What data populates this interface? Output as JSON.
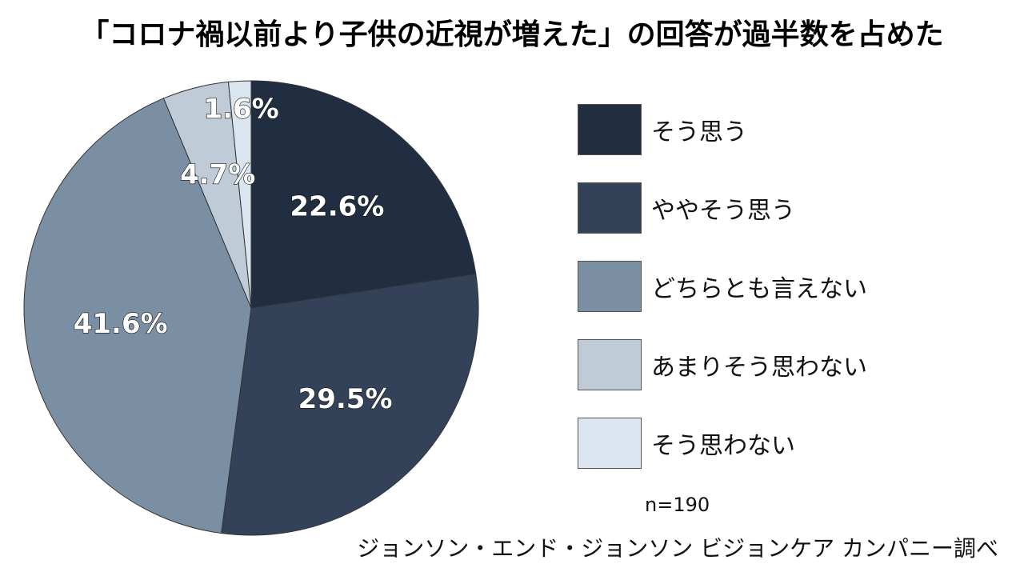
{
  "title": "「コロナ禍以前より子供の近視が増えた」の回答が過半数を占めた",
  "chart_data": {
    "type": "pie",
    "categories": [
      "そう思う",
      "ややそう思う",
      "どちらとも言えない",
      "あまりそう思わない",
      "そう思わない"
    ],
    "values": [
      22.6,
      29.5,
      41.6,
      4.7,
      1.6
    ],
    "value_labels": [
      "22.6%",
      "29.5%",
      "41.6%",
      "4.7%",
      "1.6%"
    ],
    "colors": [
      "#212d40",
      "#334258",
      "#7b8fa4",
      "#bfcbd7",
      "#dbe5ef"
    ],
    "start_angle": "top (12 o'clock)",
    "direction": "clockwise",
    "legend_position": "right"
  },
  "sample_size": "n=190",
  "source": "ジョンソン・エンド・ジョンソン ビジョンケア カンパニー調べ"
}
